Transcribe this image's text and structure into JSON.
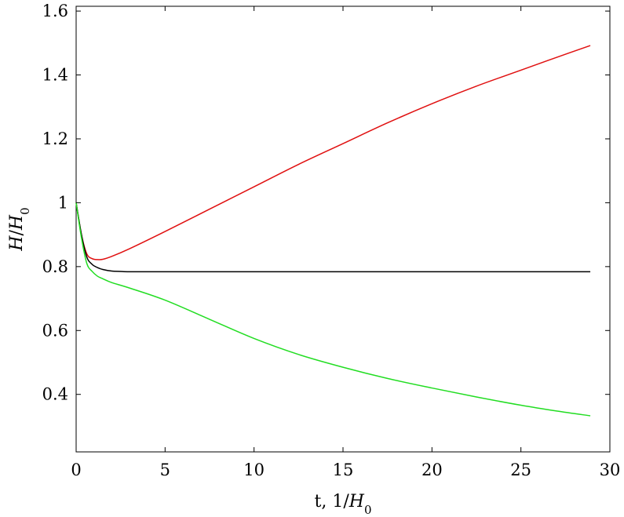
{
  "chart_data": {
    "type": "line",
    "title": "",
    "xlabel_parts": [
      {
        "text": "t, 1/",
        "italic": false
      },
      {
        "text": "H",
        "italic": true
      },
      {
        "text": "0",
        "italic": false,
        "sub": true
      }
    ],
    "ylabel_parts": [
      {
        "text": "H",
        "italic": true
      },
      {
        "text": "/",
        "italic": false
      },
      {
        "text": "H",
        "italic": true
      },
      {
        "text": "0",
        "italic": false,
        "sub": true
      }
    ],
    "xlim": [
      0,
      30
    ],
    "ylim": [
      0.22,
      1.615
    ],
    "xticks": [
      0,
      5,
      10,
      15,
      20,
      25,
      30
    ],
    "yticks": [
      0.4,
      0.6,
      0.8,
      1,
      1.2,
      1.4,
      1.6
    ],
    "xtick_labels": [
      "0",
      "5",
      "10",
      "15",
      "20",
      "25",
      "30"
    ],
    "ytick_labels": [
      "0.4",
      "0.6",
      "0.8",
      "1",
      "1.2",
      "1.4",
      "1.6"
    ],
    "grid": false,
    "series": [
      {
        "color": "#e01010",
        "x": [
          0,
          0.3,
          0.6,
          0.9,
          1.2,
          1.5,
          2,
          3,
          5,
          7.5,
          10,
          12.5,
          15,
          17.5,
          20,
          22.5,
          25,
          27,
          28.9
        ],
        "y": [
          1.0,
          0.9,
          0.84,
          0.825,
          0.822,
          0.823,
          0.832,
          0.856,
          0.91,
          0.98,
          1.05,
          1.12,
          1.185,
          1.25,
          1.31,
          1.365,
          1.415,
          1.455,
          1.492
        ]
      },
      {
        "color": "#000000",
        "x": [
          0,
          0.3,
          0.6,
          0.9,
          1.2,
          1.5,
          2,
          2.5,
          3,
          5,
          10,
          15,
          20,
          25,
          28.9
        ],
        "y": [
          1.0,
          0.9,
          0.83,
          0.807,
          0.797,
          0.791,
          0.786,
          0.785,
          0.784,
          0.784,
          0.784,
          0.784,
          0.784,
          0.784,
          0.784
        ]
      },
      {
        "color": "#22dd22",
        "x": [
          0,
          0.3,
          0.6,
          0.9,
          1.2,
          1.5,
          2,
          3,
          5,
          7.5,
          10,
          12.5,
          15,
          17.5,
          20,
          22.5,
          25,
          27,
          28.9
        ],
        "y": [
          1.0,
          0.89,
          0.81,
          0.785,
          0.77,
          0.762,
          0.75,
          0.733,
          0.695,
          0.635,
          0.575,
          0.525,
          0.485,
          0.45,
          0.42,
          0.392,
          0.366,
          0.348,
          0.333
        ]
      }
    ]
  }
}
